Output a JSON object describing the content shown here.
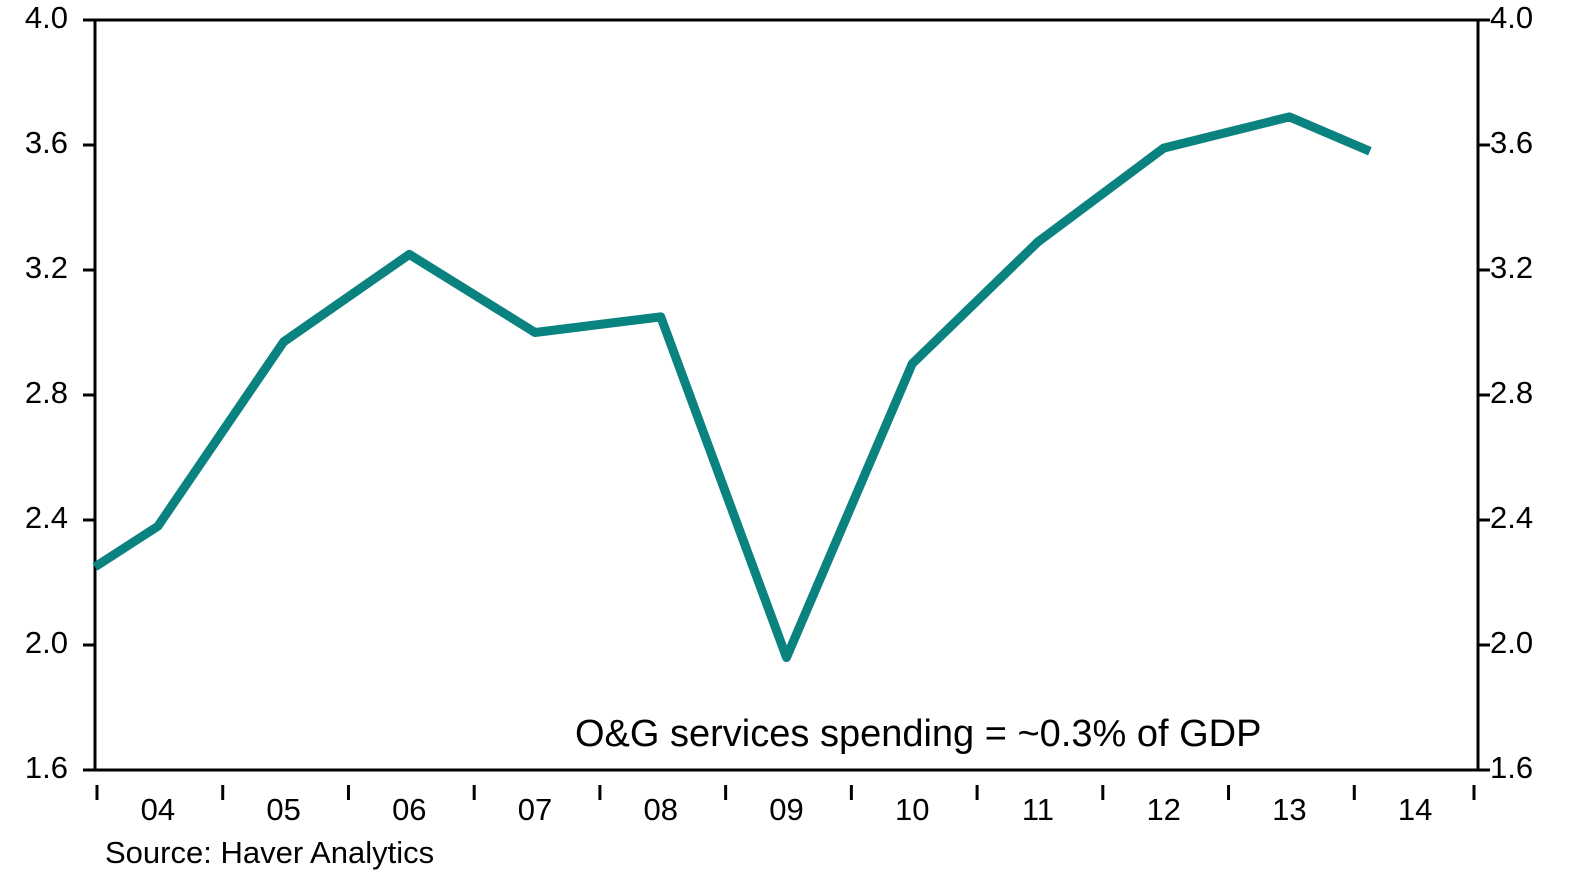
{
  "chart_data": {
    "type": "line",
    "annotation": "O&G services spending = ~0.3% of GDP",
    "source": "Source: Haver Analytics",
    "categories": [
      "04",
      "05",
      "06",
      "07",
      "08",
      "09",
      "10",
      "11",
      "12",
      "13",
      "14"
    ],
    "xlim": [
      4,
      15
    ],
    "series": [
      {
        "color": "#0a8380",
        "x": [
          4.0,
          4.5,
          5.5,
          6.5,
          7.5,
          8.5,
          9.5,
          10.5,
          11.5,
          12.5,
          13.5,
          14.14
        ],
        "values": [
          2.25,
          2.38,
          2.97,
          3.25,
          3.0,
          3.05,
          1.96,
          2.9,
          3.29,
          3.59,
          3.69,
          3.58
        ]
      }
    ],
    "ylim": [
      1.6,
      4.0
    ],
    "yticks": [
      1.6,
      {
        "value": 2,
        "label": "2.0"
      },
      2.4,
      2.8,
      3.2,
      3.6,
      {
        "value": 4,
        "label": "4.0"
      }
    ],
    "y2lim": [
      1.6,
      4.0
    ],
    "y2ticks": [
      1.6,
      {
        "value": 2,
        "label": "2.0"
      },
      2.4,
      2.8,
      3.2,
      3.6,
      {
        "value": 4,
        "label": "4.0"
      }
    ]
  }
}
